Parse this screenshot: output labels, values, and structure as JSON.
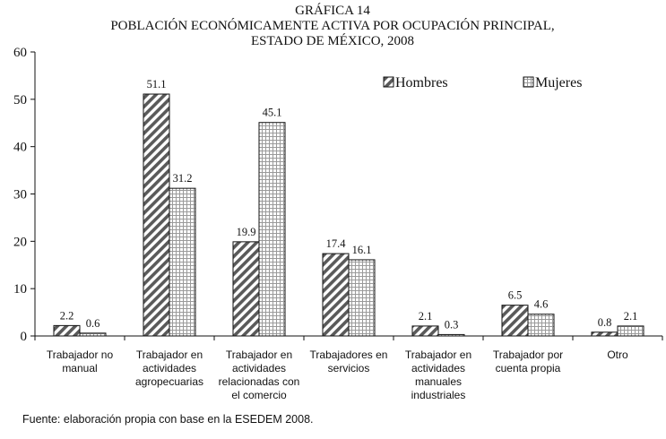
{
  "chart_data": {
    "type": "bar",
    "title_lines": [
      "GRÁFICA 14",
      "POBLACIÓN ECONÓMICAMENTE ACTIVA POR OCUPACIÓN PRINCIPAL,",
      "ESTADO DE MÉXICO, 2008"
    ],
    "categories": [
      [
        "Trabajador no",
        "manual"
      ],
      [
        "Trabajador en",
        "actividades",
        "agropecuarias"
      ],
      [
        "Trabajador en",
        "actividades",
        "relacionadas con",
        "el comercio"
      ],
      [
        "Trabajadores en",
        "servicios"
      ],
      [
        "Trabajador en",
        "actividades",
        "manuales",
        "industriales"
      ],
      [
        "Trabajador por",
        "cuenta propia"
      ],
      [
        "Otro"
      ]
    ],
    "series": [
      {
        "name": "Hombres",
        "values": [
          2.2,
          51.1,
          19.9,
          17.4,
          2.1,
          6.5,
          0.8
        ],
        "value_labels": [
          "2.2",
          "51.1",
          "19.9",
          "17.4",
          "2.1",
          "6.5",
          "0.8"
        ]
      },
      {
        "name": "Mujeres",
        "values": [
          0.6,
          31.2,
          45.1,
          16.1,
          0.3,
          4.6,
          2.1
        ],
        "value_labels": [
          "0.6",
          "31.2",
          "45.1",
          "16.1",
          "0.3",
          "4.6",
          "2.1"
        ]
      }
    ],
    "ylim": [
      0,
      60
    ],
    "yticks": [
      0,
      10,
      20,
      30,
      40,
      50,
      60
    ],
    "grid": false,
    "legend_position": "top-right",
    "xlabel": "",
    "ylabel": ""
  },
  "footer": {
    "source": "Fuente: elaboración propia con base en la ESEDEM 2008."
  }
}
